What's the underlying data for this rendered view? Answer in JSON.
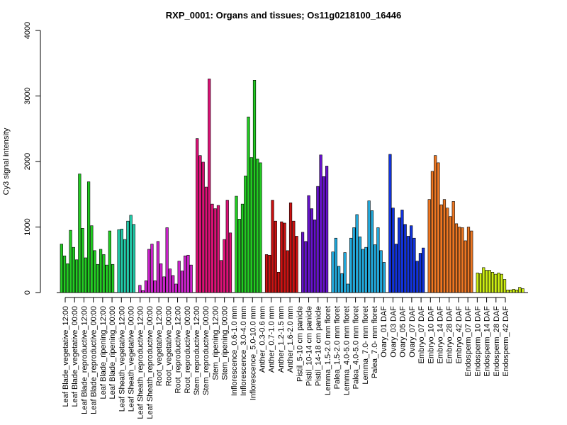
{
  "chart_data": {
    "type": "bar",
    "title": "RXP_0001: Organs and tissues; Os11g0218100_16446",
    "xlabel": "",
    "ylabel": "Cy3 signal intensity",
    "ylim": [
      0,
      4000
    ],
    "yticks": [
      0,
      1000,
      2000,
      3000,
      4000
    ],
    "grid": false,
    "legend": "none",
    "labels": [
      "Leaf Blade_vegetative_12:00",
      "Leaf Blade_vegetative_00:00",
      "Leaf Blade_reproductive_12:00",
      "Leaf Blade_reproductive_00:00",
      "Leaf Blade_ripening_12:00",
      "Leaf Blade_ripening_00:00",
      "Leaf Sheath_vegetative_12:00",
      "Leaf Sheath_vegetative_00:00",
      "Leaf Sheath_reproductive_12:00",
      "Leaf Sheath_reproductive_00:00",
      "Root_vegetative_12:00",
      "Root_vegetative_00:00",
      "Root_reproductive_12:00",
      "Root_reproductive_00:00",
      "Stem_reproductive_12:00",
      "Stem_reproductive_00:00",
      "Stem_ripening_12:00",
      "Stem_ripening_00:00",
      "Inflorescence_0.6-1.0 mm",
      "Inflorescence_3.0-4.0 mm",
      "Inflorescence_5.0-10.0 mm",
      "Anther_0.3-0.6 mm",
      "Anther_0.7-1.0 mm",
      "Anther_1.2-1.5 mm",
      "Anther_1.6-2.0 mm",
      "Pistil_5-10 cm panicle",
      "Pistil_10-14 cm panicle",
      "Pistil_14-18 cm panicle",
      "Lemma_1.5-2.0 mm floret",
      "Palea_1.5-2.0 mm floret",
      "Lemma_4.0-5.0 mm floret",
      "Palea_4.0-5.0 mm floret",
      "Lemma_7.0- mm floret",
      "Palea_7.0- mm floret",
      "Ovary_01 DAF",
      "Ovary_03 DAF",
      "Ovary_05 DAF",
      "Ovary_07 DAF",
      "Embryo_07 DAF",
      "Embryo_10 DAF",
      "Embryo_14 DAF",
      "Embryo_28 DAF",
      "Embryo_42 DAF",
      "Endosperm_07 DAF",
      "Endosperm_10 DAF",
      "Endosperm_14 DAF",
      "Endosperm_28 DAF",
      "Endosperm_42 DAF"
    ],
    "label_every_other": true,
    "groups": [
      {
        "color": "#22cc22",
        "values": [
          740,
          560,
          440,
          950,
          690,
          500,
          1810,
          980,
          530,
          1690,
          1020,
          640,
          430,
          660,
          580,
          420,
          940,
          430
        ]
      },
      {
        "color": "#22ccaa",
        "values": [
          960,
          970,
          810,
          1090,
          1180,
          1040
        ]
      },
      {
        "color": "#cc22cc",
        "values": [
          110,
          30,
          180,
          660,
          740,
          180,
          780,
          440,
          240,
          990,
          360,
          260,
          130,
          480,
          330,
          560,
          570,
          420
        ]
      },
      {
        "color": "#dd1177",
        "values": [
          2350,
          2090,
          1990,
          1610,
          3260,
          1350,
          1280,
          1330,
          490,
          810,
          1410,
          910
        ]
      },
      {
        "color": "#22cc22",
        "values": [
          1470,
          1120,
          1350,
          1780,
          2680,
          2060,
          3240,
          2040,
          1980
        ]
      },
      {
        "color": "#cc1111",
        "values": [
          580,
          570,
          1410,
          1090,
          310,
          1080,
          1060,
          640,
          1370,
          1090,
          860
        ]
      },
      {
        "color": "#6611cc",
        "values": [
          920,
          780,
          1480,
          1280,
          1110,
          1620,
          2100,
          1770,
          1930
        ]
      },
      {
        "color": "#22aadd",
        "values": [
          620,
          830,
          400,
          290,
          610,
          130,
          830,
          990,
          1190,
          850,
          660,
          690,
          1400,
          1250,
          730,
          990,
          640,
          460
        ]
      },
      {
        "color": "#1133dd",
        "values": [
          2110,
          1290,
          740,
          1140,
          1260,
          1040,
          860,
          1020,
          830,
          480,
          600,
          680
        ]
      },
      {
        "color": "#ee7722",
        "values": [
          1420,
          1850,
          2090,
          1980,
          1340,
          1420,
          1290,
          1160,
          1390,
          1050,
          1000,
          990,
          790,
          1000,
          940
        ]
      },
      {
        "color": "#ccee11",
        "values": [
          300,
          290,
          380,
          340,
          340,
          310,
          280,
          300,
          280,
          200,
          40,
          40,
          50,
          40,
          80,
          60
        ]
      }
    ]
  }
}
